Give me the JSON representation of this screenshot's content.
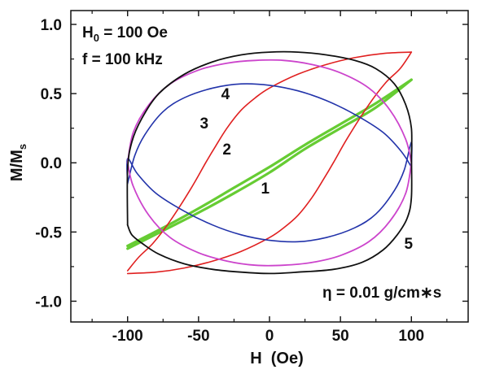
{
  "chart_data": {
    "type": "line",
    "xlabel": "H  (Oe)",
    "ylabel": {
      "main": "M/M",
      "sub": "s"
    },
    "xlim": [
      -140,
      140
    ],
    "ylim": [
      -1.15,
      1.1
    ],
    "x_ticks": [
      -100,
      -50,
      0,
      50,
      100
    ],
    "x_tick_labels": [
      "-100",
      "-50",
      "0",
      "50",
      "100"
    ],
    "y_ticks": [
      -1.0,
      -0.5,
      0.0,
      0.5,
      1.0
    ],
    "y_tick_labels": [
      "-1.0",
      "-0.5",
      "0.0",
      "0.5",
      "1.0"
    ],
    "grid": false,
    "annotations": {
      "h0": {
        "main": "H",
        "sub": "0",
        "rest": " = 100 Oe"
      },
      "freq": "f = 100 kHz",
      "eta": "η = 0.01 g/cm∗s"
    },
    "series": [
      {
        "name": "1",
        "color": "#66cc33",
        "stroke_width": 3.2,
        "upper": [
          [
            -100,
            -0.6
          ],
          [
            -75,
            -0.47
          ],
          [
            -50,
            -0.33
          ],
          [
            -25,
            -0.18
          ],
          [
            0,
            -0.03
          ],
          [
            25,
            0.13
          ],
          [
            50,
            0.28
          ],
          [
            75,
            0.43
          ],
          [
            100,
            0.6
          ]
        ],
        "lower": [
          [
            100,
            0.6
          ],
          [
            75,
            0.4
          ],
          [
            50,
            0.25
          ],
          [
            25,
            0.1
          ],
          [
            0,
            -0.07
          ],
          [
            -25,
            -0.22
          ],
          [
            -50,
            -0.36
          ],
          [
            -75,
            -0.49
          ],
          [
            -100,
            -0.62
          ]
        ]
      },
      {
        "name": "2",
        "color": "#e02020",
        "stroke_width": 1.6,
        "upper": [
          [
            -100,
            -0.78
          ],
          [
            -92,
            -0.68
          ],
          [
            -82,
            -0.58
          ],
          [
            -70,
            -0.42
          ],
          [
            -55,
            -0.18
          ],
          [
            -45,
            0.0
          ],
          [
            -38,
            0.12
          ],
          [
            -30,
            0.25
          ],
          [
            -20,
            0.38
          ],
          [
            -10,
            0.47
          ],
          [
            0,
            0.54
          ],
          [
            20,
            0.64
          ],
          [
            40,
            0.71
          ],
          [
            60,
            0.76
          ],
          [
            80,
            0.79
          ],
          [
            100,
            0.8
          ]
        ],
        "lower": [
          [
            100,
            0.8
          ],
          [
            92,
            0.68
          ],
          [
            82,
            0.58
          ],
          [
            70,
            0.42
          ],
          [
            55,
            0.18
          ],
          [
            45,
            0.0
          ],
          [
            38,
            -0.12
          ],
          [
            30,
            -0.25
          ],
          [
            20,
            -0.38
          ],
          [
            10,
            -0.47
          ],
          [
            0,
            -0.54
          ],
          [
            -20,
            -0.64
          ],
          [
            -40,
            -0.71
          ],
          [
            -60,
            -0.76
          ],
          [
            -80,
            -0.79
          ],
          [
            -100,
            -0.8
          ]
        ]
      },
      {
        "name": "3",
        "color": "#2233aa",
        "stroke_width": 1.6,
        "upper": [
          [
            -100,
            -0.15
          ],
          [
            -95,
            0.05
          ],
          [
            -88,
            0.2
          ],
          [
            -75,
            0.37
          ],
          [
            -60,
            0.47
          ],
          [
            -40,
            0.54
          ],
          [
            -20,
            0.57
          ],
          [
            0,
            0.56
          ],
          [
            20,
            0.52
          ],
          [
            40,
            0.45
          ],
          [
            60,
            0.35
          ],
          [
            80,
            0.22
          ],
          [
            93,
            0.08
          ],
          [
            100,
            -0.03
          ]
        ],
        "lower": [
          [
            100,
            -0.03
          ],
          [
            100,
            0.15
          ],
          [
            95,
            -0.05
          ],
          [
            88,
            -0.2
          ],
          [
            75,
            -0.37
          ],
          [
            60,
            -0.47
          ],
          [
            40,
            -0.54
          ],
          [
            20,
            -0.57
          ],
          [
            0,
            -0.56
          ],
          [
            -20,
            -0.52
          ],
          [
            -40,
            -0.45
          ],
          [
            -60,
            -0.35
          ],
          [
            -80,
            -0.22
          ],
          [
            -93,
            -0.08
          ],
          [
            -100,
            0.03
          ],
          [
            -100,
            -0.15
          ]
        ]
      },
      {
        "name": "4",
        "color": "#cc44cc",
        "stroke_width": 1.8,
        "upper": [
          [
            -100,
            0.0
          ],
          [
            -96,
            0.22
          ],
          [
            -85,
            0.42
          ],
          [
            -70,
            0.57
          ],
          [
            -50,
            0.67
          ],
          [
            -30,
            0.72
          ],
          [
            -10,
            0.74
          ],
          [
            10,
            0.74
          ],
          [
            30,
            0.71
          ],
          [
            50,
            0.65
          ],
          [
            70,
            0.54
          ],
          [
            85,
            0.38
          ],
          [
            96,
            0.17
          ],
          [
            100,
            0.0
          ]
        ],
        "lower": [
          [
            100,
            0.0
          ],
          [
            96,
            -0.22
          ],
          [
            85,
            -0.42
          ],
          [
            70,
            -0.57
          ],
          [
            50,
            -0.67
          ],
          [
            30,
            -0.72
          ],
          [
            10,
            -0.74
          ],
          [
            -10,
            -0.74
          ],
          [
            -30,
            -0.71
          ],
          [
            -50,
            -0.65
          ],
          [
            -70,
            -0.54
          ],
          [
            -85,
            -0.38
          ],
          [
            -96,
            -0.17
          ],
          [
            -100,
            0.0
          ]
        ]
      },
      {
        "name": "5",
        "color": "#111111",
        "stroke_width": 1.8,
        "upper": [
          [
            -100,
            -0.45
          ],
          [
            -100,
            -0.05
          ],
          [
            -97,
            0.15
          ],
          [
            -90,
            0.32
          ],
          [
            -78,
            0.5
          ],
          [
            -60,
            0.64
          ],
          [
            -40,
            0.73
          ],
          [
            -20,
            0.78
          ],
          [
            0,
            0.8
          ],
          [
            20,
            0.8
          ],
          [
            40,
            0.78
          ],
          [
            60,
            0.74
          ],
          [
            75,
            0.68
          ],
          [
            88,
            0.57
          ],
          [
            96,
            0.42
          ],
          [
            100,
            0.25
          ],
          [
            100,
            0.05
          ]
        ],
        "lower": [
          [
            100,
            0.05
          ],
          [
            100,
            -0.25
          ],
          [
            97,
            -0.4
          ],
          [
            90,
            -0.52
          ],
          [
            80,
            -0.63
          ],
          [
            65,
            -0.72
          ],
          [
            45,
            -0.77
          ],
          [
            20,
            -0.79
          ],
          [
            0,
            -0.8
          ],
          [
            -20,
            -0.79
          ],
          [
            -40,
            -0.77
          ],
          [
            -60,
            -0.73
          ],
          [
            -78,
            -0.66
          ],
          [
            -90,
            -0.58
          ],
          [
            -97,
            -0.52
          ],
          [
            -100,
            -0.45
          ]
        ]
      }
    ],
    "curve_labels": [
      {
        "text": "4",
        "x": -31,
        "y": 0.5
      },
      {
        "text": "3",
        "x": -46,
        "y": 0.29
      },
      {
        "text": "2",
        "x": -30,
        "y": 0.1
      },
      {
        "text": "1",
        "x": -3,
        "y": -0.18
      },
      {
        "text": "5",
        "x": 98,
        "y": -0.58
      }
    ]
  }
}
